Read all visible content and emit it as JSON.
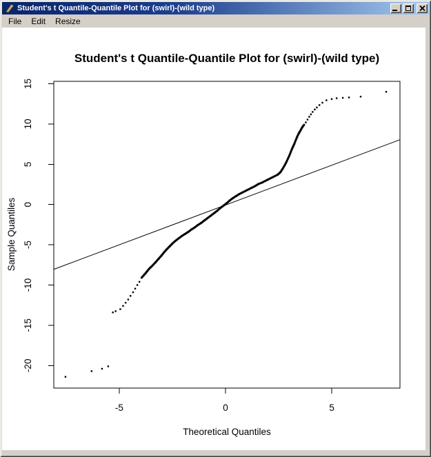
{
  "window": {
    "title": "Student's t Quantile-Quantile Plot for (swirl)-(wild type)",
    "menu": [
      "File",
      "Edit",
      "Resize"
    ]
  },
  "chart_data": {
    "type": "scatter",
    "title": "Student's t Quantile-Quantile Plot for (swirl)-(wild type)",
    "xlabel": "Theoretical Quantiles",
    "ylabel": "Sample Quantiles",
    "x_ticks": [
      -5,
      0,
      5
    ],
    "y_ticks": [
      15,
      10,
      5,
      0,
      -5,
      -10,
      -15,
      -20
    ],
    "xlim": [
      -8.08,
      8.21
    ],
    "ylim": [
      -22.8,
      15.3
    ],
    "grid": false,
    "point_color": "#000000",
    "reference_line": {
      "x1": -8.08,
      "y1": -8.05,
      "x2": 8.21,
      "y2": 8.05
    },
    "dense_curve": [
      [
        -3.95,
        -9.1
      ],
      [
        -3.85,
        -8.8
      ],
      [
        -3.75,
        -8.5
      ],
      [
        -3.66,
        -8.2
      ],
      [
        -3.58,
        -7.95
      ],
      [
        -3.48,
        -7.7
      ],
      [
        -3.3,
        -7.2
      ],
      [
        -3.15,
        -6.75
      ],
      [
        -3.0,
        -6.3
      ],
      [
        -2.88,
        -5.9
      ],
      [
        -2.76,
        -5.55
      ],
      [
        -2.63,
        -5.2
      ],
      [
        -2.5,
        -4.85
      ],
      [
        -2.35,
        -4.5
      ],
      [
        -2.2,
        -4.2
      ],
      [
        -2.05,
        -3.9
      ],
      [
        -1.9,
        -3.65
      ],
      [
        -1.75,
        -3.4
      ],
      [
        -1.6,
        -3.1
      ],
      [
        -1.45,
        -2.85
      ],
      [
        -1.3,
        -2.55
      ],
      [
        -1.15,
        -2.3
      ],
      [
        -1.0,
        -2.0
      ],
      [
        -0.85,
        -1.7
      ],
      [
        -0.7,
        -1.4
      ],
      [
        -0.55,
        -1.1
      ],
      [
        -0.4,
        -0.8
      ],
      [
        -0.25,
        -0.45
      ],
      [
        -0.1,
        -0.15
      ],
      [
        0.05,
        0.15
      ],
      [
        0.2,
        0.5
      ],
      [
        0.35,
        0.8
      ],
      [
        0.5,
        1.05
      ],
      [
        0.65,
        1.3
      ],
      [
        0.8,
        1.5
      ],
      [
        0.95,
        1.7
      ],
      [
        1.1,
        1.9
      ],
      [
        1.25,
        2.1
      ],
      [
        1.4,
        2.3
      ],
      [
        1.55,
        2.55
      ],
      [
        1.7,
        2.7
      ],
      [
        1.85,
        2.9
      ],
      [
        2.0,
        3.1
      ],
      [
        2.15,
        3.3
      ],
      [
        2.3,
        3.5
      ],
      [
        2.45,
        3.7
      ],
      [
        2.58,
        4.0
      ],
      [
        2.68,
        4.4
      ],
      [
        2.78,
        4.85
      ],
      [
        2.86,
        5.25
      ],
      [
        2.93,
        5.65
      ],
      [
        3.0,
        6.05
      ],
      [
        3.06,
        6.45
      ],
      [
        3.12,
        6.85
      ],
      [
        3.18,
        7.2
      ],
      [
        3.24,
        7.55
      ],
      [
        3.3,
        7.95
      ],
      [
        3.37,
        8.4
      ],
      [
        3.44,
        8.8
      ],
      [
        3.51,
        9.1
      ],
      [
        3.58,
        9.45
      ],
      [
        3.65,
        9.75
      ],
      [
        3.7,
        9.9
      ]
    ],
    "scatter_points": [
      [
        -7.53,
        -21.4
      ],
      [
        -6.3,
        -20.7
      ],
      [
        -5.81,
        -20.4
      ],
      [
        -5.52,
        -20.1
      ],
      [
        -5.3,
        -13.4
      ],
      [
        -5.17,
        -13.25
      ],
      [
        -4.95,
        -13.0
      ],
      [
        -4.82,
        -12.6
      ],
      [
        -4.7,
        -12.2
      ],
      [
        -4.58,
        -11.8
      ],
      [
        -4.47,
        -11.35
      ],
      [
        -4.35,
        -10.9
      ],
      [
        -4.25,
        -10.45
      ],
      [
        -4.15,
        -10.0
      ],
      [
        -4.05,
        -9.6
      ],
      [
        3.78,
        10.2
      ],
      [
        3.86,
        10.55
      ],
      [
        3.94,
        10.9
      ],
      [
        4.02,
        11.2
      ],
      [
        4.1,
        11.5
      ],
      [
        4.2,
        11.8
      ],
      [
        4.3,
        12.05
      ],
      [
        4.42,
        12.35
      ],
      [
        4.56,
        12.65
      ],
      [
        4.75,
        12.95
      ],
      [
        5.0,
        13.1
      ],
      [
        5.23,
        13.2
      ],
      [
        5.52,
        13.25
      ],
      [
        5.81,
        13.3
      ],
      [
        6.36,
        13.4
      ],
      [
        7.56,
        14.0
      ]
    ]
  }
}
